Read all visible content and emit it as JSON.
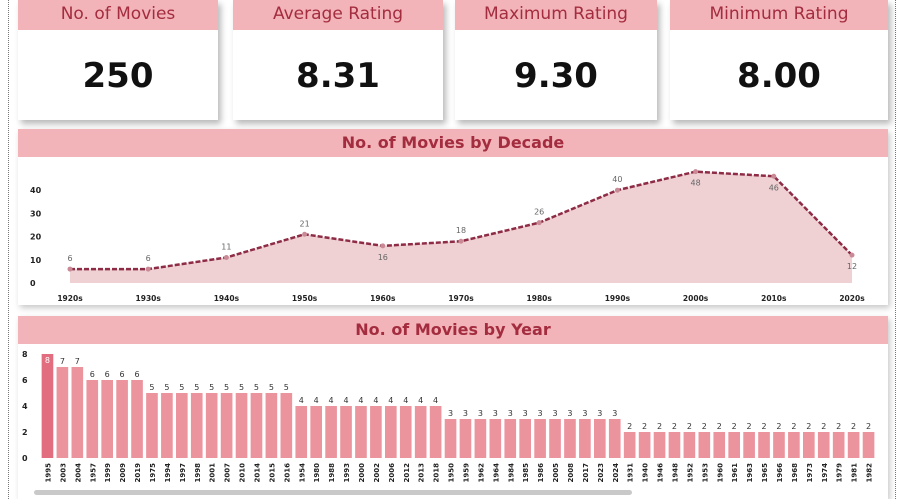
{
  "kpis": [
    {
      "title": "No. of Movies",
      "value": "250"
    },
    {
      "title": "Average Rating",
      "value": "8.31"
    },
    {
      "title": "Maximum Rating",
      "value": "9.30"
    },
    {
      "title": "Minimum Rating",
      "value": "8.00"
    }
  ],
  "decade_panel": {
    "title": "No. of Movies by Decade"
  },
  "year_panel": {
    "title": "No. of Movies by Year"
  },
  "colors": {
    "accent_bg": "#f2b3b9",
    "accent_text": "#a32d3f",
    "line": "#8e2b45",
    "area": "#ecc9cd",
    "bar": "#ec949e"
  },
  "chart_data": [
    {
      "type": "area",
      "title": "No. of Movies by Decade",
      "categories": [
        "1920s",
        "1930s",
        "1940s",
        "1950s",
        "1960s",
        "1970s",
        "1980s",
        "1990s",
        "2000s",
        "2010s",
        "2020s"
      ],
      "values": [
        6,
        6,
        11,
        21,
        16,
        18,
        26,
        40,
        48,
        46,
        12
      ],
      "yticks": [
        0,
        10,
        20,
        30,
        40
      ],
      "ylim": [
        0,
        50
      ],
      "xlabel": "",
      "ylabel": ""
    },
    {
      "type": "bar",
      "title": "No. of Movies by Year",
      "categories": [
        "1995",
        "2003",
        "2004",
        "1957",
        "1999",
        "2009",
        "2019",
        "1975",
        "1994",
        "1997",
        "1998",
        "2001",
        "2007",
        "2010",
        "2014",
        "2015",
        "2016",
        "1954",
        "1980",
        "1988",
        "1993",
        "2000",
        "2002",
        "2006",
        "2012",
        "2013",
        "2018",
        "1950",
        "1959",
        "1962",
        "1964",
        "1984",
        "1985",
        "1986",
        "2005",
        "2008",
        "2017",
        "2023",
        "2024",
        "1931",
        "1940",
        "1946",
        "1948",
        "1952",
        "1953",
        "1960",
        "1961",
        "1963",
        "1965",
        "1966",
        "1968",
        "1973",
        "1974",
        "1979",
        "1981",
        "1982"
      ],
      "values": [
        8,
        7,
        7,
        6,
        6,
        6,
        6,
        5,
        5,
        5,
        5,
        5,
        5,
        5,
        5,
        5,
        5,
        4,
        4,
        4,
        4,
        4,
        4,
        4,
        4,
        4,
        4,
        3,
        3,
        3,
        3,
        3,
        3,
        3,
        3,
        3,
        3,
        3,
        3,
        2,
        2,
        2,
        2,
        2,
        2,
        2,
        2,
        2,
        2,
        2,
        2,
        2,
        2,
        2,
        2,
        2
      ],
      "yticks": [
        0,
        2,
        4,
        6,
        8
      ],
      "ylim": [
        0,
        8
      ],
      "xlabel": "",
      "ylabel": ""
    }
  ]
}
